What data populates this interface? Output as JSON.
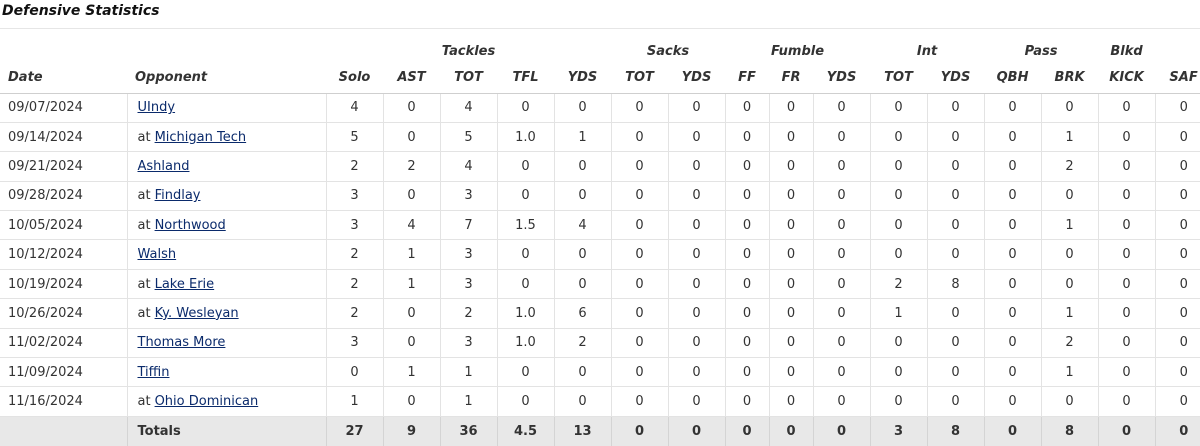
{
  "title": "Defensive Statistics",
  "groups": {
    "tackles": "Tackles",
    "sacks": "Sacks",
    "fumble": "Fumble",
    "int": "Int",
    "pass": "Pass",
    "blkd": "Blkd"
  },
  "columns": [
    "Date",
    "Opponent",
    "Solo",
    "AST",
    "TOT",
    "TFL",
    "YDS",
    "TOT",
    "YDS",
    "FF",
    "FR",
    "YDS",
    "TOT",
    "YDS",
    "QBH",
    "BRK",
    "KICK",
    "SAF"
  ],
  "rows": [
    {
      "date": "09/07/2024",
      "prefix": "",
      "opponent": "UIndy",
      "stats": [
        "4",
        "0",
        "4",
        "0",
        "0",
        "0",
        "0",
        "0",
        "0",
        "0",
        "0",
        "0",
        "0",
        "0",
        "0",
        "0"
      ]
    },
    {
      "date": "09/14/2024",
      "prefix": "at",
      "opponent": "Michigan Tech",
      "stats": [
        "5",
        "0",
        "5",
        "1.0",
        "1",
        "0",
        "0",
        "0",
        "0",
        "0",
        "0",
        "0",
        "0",
        "1",
        "0",
        "0"
      ]
    },
    {
      "date": "09/21/2024",
      "prefix": "",
      "opponent": "Ashland",
      "stats": [
        "2",
        "2",
        "4",
        "0",
        "0",
        "0",
        "0",
        "0",
        "0",
        "0",
        "0",
        "0",
        "0",
        "2",
        "0",
        "0"
      ]
    },
    {
      "date": "09/28/2024",
      "prefix": "at",
      "opponent": "Findlay",
      "stats": [
        "3",
        "0",
        "3",
        "0",
        "0",
        "0",
        "0",
        "0",
        "0",
        "0",
        "0",
        "0",
        "0",
        "0",
        "0",
        "0"
      ]
    },
    {
      "date": "10/05/2024",
      "prefix": "at",
      "opponent": "Northwood",
      "stats": [
        "3",
        "4",
        "7",
        "1.5",
        "4",
        "0",
        "0",
        "0",
        "0",
        "0",
        "0",
        "0",
        "0",
        "1",
        "0",
        "0"
      ]
    },
    {
      "date": "10/12/2024",
      "prefix": "",
      "opponent": "Walsh",
      "stats": [
        "2",
        "1",
        "3",
        "0",
        "0",
        "0",
        "0",
        "0",
        "0",
        "0",
        "0",
        "0",
        "0",
        "0",
        "0",
        "0"
      ]
    },
    {
      "date": "10/19/2024",
      "prefix": "at",
      "opponent": "Lake Erie",
      "stats": [
        "2",
        "1",
        "3",
        "0",
        "0",
        "0",
        "0",
        "0",
        "0",
        "0",
        "2",
        "8",
        "0",
        "0",
        "0",
        "0"
      ]
    },
    {
      "date": "10/26/2024",
      "prefix": "at",
      "opponent": "Ky. Wesleyan",
      "stats": [
        "2",
        "0",
        "2",
        "1.0",
        "6",
        "0",
        "0",
        "0",
        "0",
        "0",
        "1",
        "0",
        "0",
        "1",
        "0",
        "0"
      ]
    },
    {
      "date": "11/02/2024",
      "prefix": "",
      "opponent": "Thomas More",
      "stats": [
        "3",
        "0",
        "3",
        "1.0",
        "2",
        "0",
        "0",
        "0",
        "0",
        "0",
        "0",
        "0",
        "0",
        "2",
        "0",
        "0"
      ]
    },
    {
      "date": "11/09/2024",
      "prefix": "",
      "opponent": "Tiffin",
      "stats": [
        "0",
        "1",
        "1",
        "0",
        "0",
        "0",
        "0",
        "0",
        "0",
        "0",
        "0",
        "0",
        "0",
        "1",
        "0",
        "0"
      ]
    },
    {
      "date": "11/16/2024",
      "prefix": "at",
      "opponent": "Ohio Dominican",
      "stats": [
        "1",
        "0",
        "1",
        "0",
        "0",
        "0",
        "0",
        "0",
        "0",
        "0",
        "0",
        "0",
        "0",
        "0",
        "0",
        "0"
      ]
    }
  ],
  "totals": {
    "label": "Totals",
    "stats": [
      "27",
      "9",
      "36",
      "4.5",
      "13",
      "0",
      "0",
      "0",
      "0",
      "0",
      "3",
      "8",
      "0",
      "8",
      "0",
      "0"
    ]
  },
  "colors": {
    "link": "#0a2a6b",
    "totals_bg": "#e8e8e8",
    "grid": "#e3e3e3"
  }
}
